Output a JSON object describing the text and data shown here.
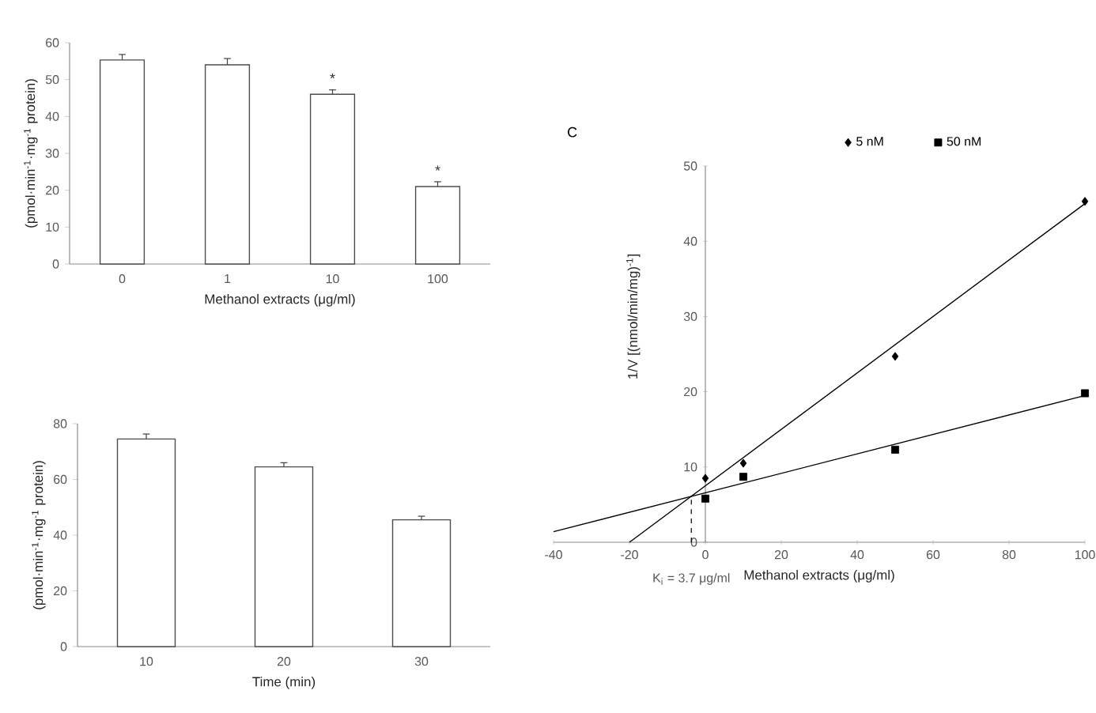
{
  "chart_data": [
    {
      "type": "bar",
      "categories": [
        "0",
        "1",
        "10",
        "100"
      ],
      "values": [
        55.3,
        54,
        46,
        21
      ],
      "errors": [
        1.5,
        1.7,
        1.2,
        1.3
      ],
      "color": "#ffffff",
      "xlabel": "Methanol extracts (μg/ml)",
      "ylabel": "(pmol·min$^{-1}$·mg$^{-1}$ protein)",
      "ylim": [
        0,
        60
      ],
      "yticks": [
        0,
        10,
        20,
        30,
        40,
        50,
        60
      ],
      "annotations": [
        {
          "text": "*",
          "x": "10",
          "y": 48.5
        },
        {
          "text": "*",
          "x": "100",
          "y": 23.5
        }
      ]
    },
    {
      "type": "bar",
      "categories": [
        "10",
        "20",
        "30"
      ],
      "values": [
        74.5,
        64.5,
        45.5
      ],
      "errors": [
        1.8,
        1.5,
        1.3
      ],
      "color": "#ffffff",
      "xlabel": "Time (min)",
      "ylabel": "(pmol·min$^{-1}$·mg$^{-1}$ protein)",
      "ylim": [
        0,
        80
      ],
      "yticks": [
        0,
        20,
        40,
        60,
        80
      ]
    },
    {
      "type": "scatter",
      "xlabel": "Methanol extracts (μg/ml)",
      "ylabel": "1/V  [(nmol/min/mg)$^{-1}$]",
      "xlim": [
        -40,
        100
      ],
      "ylim": [
        0,
        50
      ],
      "xticks": [
        -40,
        -20,
        0,
        20,
        40,
        60,
        80,
        100
      ],
      "yticks": [
        0,
        10,
        20,
        30,
        40,
        50
      ],
      "legend": "top",
      "series": [
        {
          "name": "5 nM",
          "color": "#000000",
          "marker": "diamond",
          "x": [
            0,
            10,
            50,
            100
          ],
          "values": [
            8.5,
            10.5,
            24.7,
            45.3
          ]
        },
        {
          "name": "50 nM",
          "color": "#000000",
          "marker": "square",
          "x": [
            0,
            10,
            50,
            100
          ],
          "values": [
            5.8,
            8.7,
            12.3,
            19.8
          ]
        },
        {
          "type": "line",
          "color": "#000000",
          "x": [
            -20,
            100
          ],
          "values": [
            0,
            45
          ]
        },
        {
          "type": "line",
          "color": "#000000",
          "x": [
            -40,
            100
          ],
          "values": [
            1.4,
            19.5
          ]
        }
      ],
      "ref_lines": [
        {
          "axis": "x",
          "value": -3.7,
          "line_style": "dashed"
        }
      ],
      "annotations": [
        "C",
        {
          "text": "K$_{i}$ = 3.7 μg/ml",
          "x": -3.7,
          "y": 0
        }
      ]
    }
  ]
}
